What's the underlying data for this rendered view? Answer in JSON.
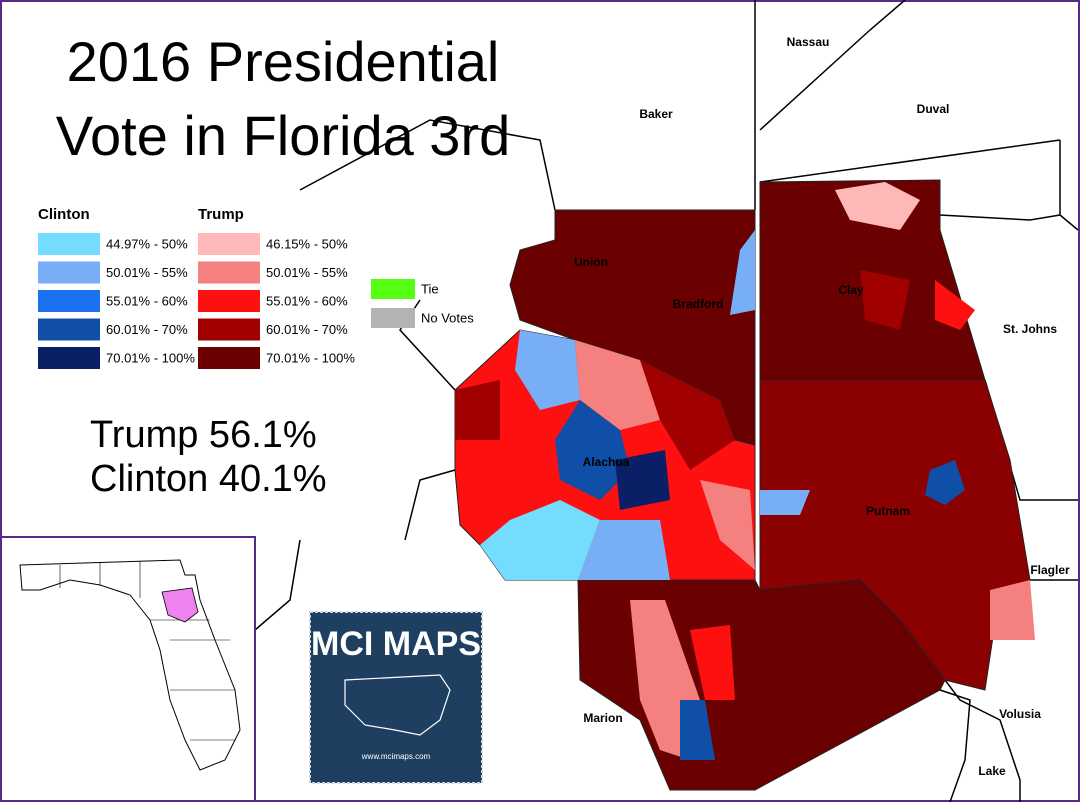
{
  "title": {
    "line1": "2016 Presidential",
    "line2": "Vote in Florida 3rd"
  },
  "legend": {
    "clinton": {
      "title": "Clinton",
      "items": [
        {
          "label": "44.97% - 50%",
          "color": "#74dcff"
        },
        {
          "label": "50.01% - 55%",
          "color": "#77aef5"
        },
        {
          "label": "55.01% - 60%",
          "color": "#1a72f0"
        },
        {
          "label": "60.01% - 70%",
          "color": "#0f4fa8"
        },
        {
          "label": "70.01% - 100%",
          "color": "#0a1f66"
        }
      ]
    },
    "trump": {
      "title": "Trump",
      "items": [
        {
          "label": "46.15% - 50%",
          "color": "#ffb8b8"
        },
        {
          "label": "50.01% - 55%",
          "color": "#f58080"
        },
        {
          "label": "55.01% - 60%",
          "color": "#ff1010"
        },
        {
          "label": "60.01% - 70%",
          "color": "#a00000"
        },
        {
          "label": "70.01% - 100%",
          "color": "#6b0000"
        }
      ]
    },
    "other": [
      {
        "label": "Tie",
        "color": "#55ff11"
      },
      {
        "label": "No Votes",
        "color": "#b3b3b3"
      }
    ]
  },
  "results": {
    "line1": "Trump  56.1%",
    "line2": "Clinton 40.1%"
  },
  "counties": [
    {
      "label": "Nassau"
    },
    {
      "label": "Baker"
    },
    {
      "label": "Duval"
    },
    {
      "label": "Union"
    },
    {
      "label": "Bradford"
    },
    {
      "label": "Clay"
    },
    {
      "label": "St. Johns"
    },
    {
      "label": "Alachua"
    },
    {
      "label": "Putnam"
    },
    {
      "label": "Flagler"
    },
    {
      "label": "Marion"
    },
    {
      "label": "Volusia"
    },
    {
      "label": "Lake"
    }
  ],
  "logo": {
    "title": "MCI MAPS",
    "url": "www.mcimaps.com"
  }
}
